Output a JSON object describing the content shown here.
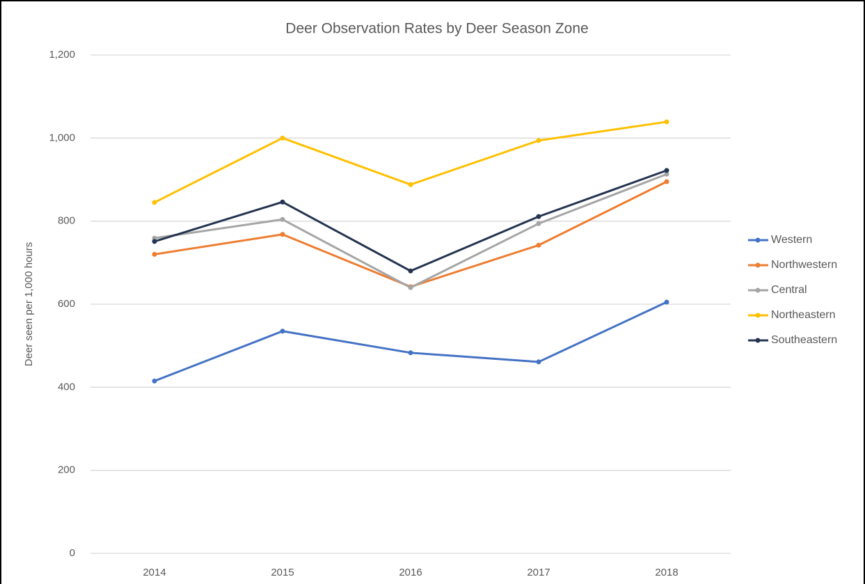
{
  "chart_data": {
    "type": "line",
    "title": "Deer Observation Rates by Deer Season Zone",
    "y_label": "Deer seen per 1,000 hours",
    "categories": [
      "2014",
      "2015",
      "2016",
      "2017",
      "2018"
    ],
    "series": [
      {
        "name": "Western",
        "color": "#4472c4",
        "values": [
          415,
          535,
          483,
          461,
          605
        ]
      },
      {
        "name": "Northwestern",
        "color": "#ed7d31",
        "values": [
          720,
          768,
          642,
          742,
          895
        ]
      },
      {
        "name": "Central",
        "color": "#a5a5a5",
        "values": [
          759,
          804,
          640,
          794,
          913
        ]
      },
      {
        "name": "Northeastern",
        "color": "#ffc000",
        "values": [
          845,
          1000,
          888,
          994,
          1039
        ]
      },
      {
        "name": "Southeastern",
        "color": "#243450",
        "values": [
          751,
          846,
          680,
          811,
          922
        ]
      }
    ],
    "ylim": [
      0,
      1200
    ],
    "yticks": [
      0,
      200,
      400,
      600,
      800,
      {
        "value": 1000,
        "label": "1,000"
      },
      {
        "value": 1200,
        "label": "1,200"
      }
    ],
    "grid": true,
    "legend": "right"
  }
}
